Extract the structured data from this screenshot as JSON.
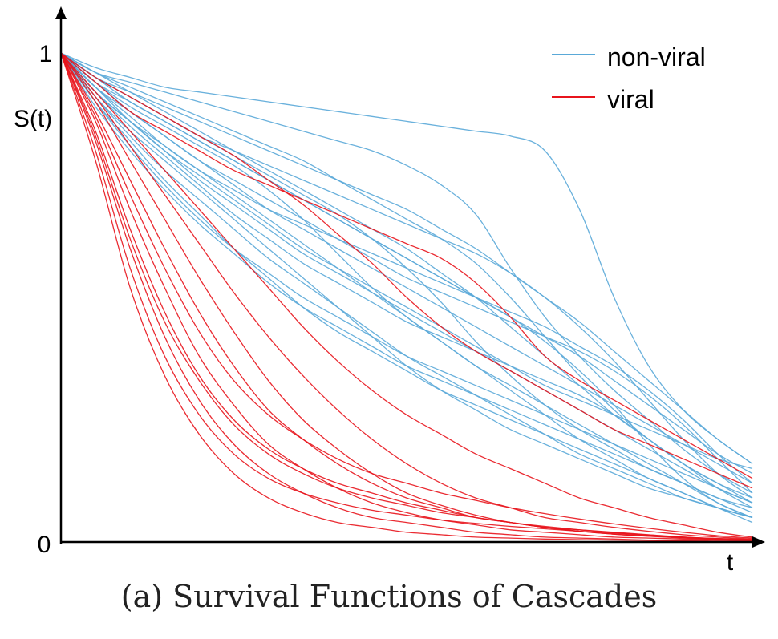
{
  "chart_data": {
    "type": "line",
    "title": "",
    "xlabel": "t",
    "ylabel": "S(t)",
    "ylim": [
      0,
      1
    ],
    "y_tick_labels": [
      "0",
      "1"
    ],
    "grid": false,
    "legend_placement": "top-right",
    "x": [
      0,
      0.05,
      0.1,
      0.15,
      0.2,
      0.25,
      0.3,
      0.35,
      0.4,
      0.45,
      0.5,
      0.55,
      0.6,
      0.65,
      0.7,
      0.75,
      0.8,
      0.85,
      0.9,
      0.95,
      1.0
    ],
    "series": [
      {
        "name": "non-viral",
        "color": "#5aa9d8",
        "curves": [
          [
            1,
            0.97,
            0.95,
            0.93,
            0.92,
            0.91,
            0.9,
            0.89,
            0.88,
            0.87,
            0.86,
            0.85,
            0.84,
            0.83,
            0.8,
            0.68,
            0.5,
            0.36,
            0.27,
            0.21,
            0.16
          ],
          [
            1,
            0.96,
            0.94,
            0.92,
            0.9,
            0.88,
            0.86,
            0.84,
            0.82,
            0.8,
            0.77,
            0.73,
            0.67,
            0.56,
            0.46,
            0.38,
            0.31,
            0.25,
            0.19,
            0.14,
            0.1
          ],
          [
            1,
            0.95,
            0.92,
            0.89,
            0.86,
            0.83,
            0.8,
            0.77,
            0.74,
            0.71,
            0.68,
            0.64,
            0.6,
            0.55,
            0.5,
            0.45,
            0.39,
            0.33,
            0.27,
            0.21,
            0.16
          ],
          [
            1,
            0.94,
            0.9,
            0.86,
            0.82,
            0.78,
            0.74,
            0.7,
            0.66,
            0.62,
            0.58,
            0.54,
            0.5,
            0.46,
            0.42,
            0.38,
            0.33,
            0.28,
            0.23,
            0.18,
            0.14
          ],
          [
            1,
            0.93,
            0.88,
            0.83,
            0.78,
            0.73,
            0.68,
            0.64,
            0.6,
            0.56,
            0.52,
            0.48,
            0.44,
            0.4,
            0.36,
            0.32,
            0.28,
            0.24,
            0.2,
            0.16,
            0.12
          ],
          [
            1,
            0.92,
            0.86,
            0.8,
            0.74,
            0.69,
            0.64,
            0.59,
            0.55,
            0.51,
            0.47,
            0.43,
            0.39,
            0.35,
            0.31,
            0.27,
            0.23,
            0.19,
            0.15,
            0.11,
            0.08
          ],
          [
            1,
            0.95,
            0.91,
            0.87,
            0.83,
            0.79,
            0.75,
            0.71,
            0.67,
            0.62,
            0.56,
            0.49,
            0.41,
            0.34,
            0.28,
            0.23,
            0.19,
            0.15,
            0.12,
            0.09,
            0.07
          ],
          [
            1,
            0.93,
            0.87,
            0.81,
            0.76,
            0.72,
            0.68,
            0.65,
            0.62,
            0.59,
            0.56,
            0.53,
            0.5,
            0.47,
            0.44,
            0.4,
            0.36,
            0.31,
            0.25,
            0.18,
            0.12
          ],
          [
            1,
            0.91,
            0.83,
            0.76,
            0.7,
            0.64,
            0.58,
            0.53,
            0.48,
            0.43,
            0.38,
            0.34,
            0.3,
            0.26,
            0.22,
            0.18,
            0.15,
            0.12,
            0.09,
            0.07,
            0.05
          ],
          [
            1,
            0.94,
            0.89,
            0.85,
            0.81,
            0.77,
            0.72,
            0.66,
            0.59,
            0.52,
            0.46,
            0.41,
            0.36,
            0.32,
            0.28,
            0.24,
            0.2,
            0.16,
            0.12,
            0.08,
            0.05
          ],
          [
            1,
            0.96,
            0.93,
            0.9,
            0.87,
            0.84,
            0.81,
            0.78,
            0.74,
            0.7,
            0.66,
            0.62,
            0.57,
            0.5,
            0.42,
            0.34,
            0.27,
            0.21,
            0.16,
            0.12,
            0.09
          ],
          [
            1,
            0.92,
            0.85,
            0.79,
            0.73,
            0.67,
            0.62,
            0.57,
            0.53,
            0.49,
            0.45,
            0.42,
            0.39,
            0.36,
            0.33,
            0.3,
            0.26,
            0.21,
            0.16,
            0.11,
            0.07
          ],
          [
            1,
            0.9,
            0.82,
            0.74,
            0.67,
            0.6,
            0.54,
            0.48,
            0.43,
            0.39,
            0.35,
            0.31,
            0.28,
            0.25,
            0.22,
            0.19,
            0.16,
            0.13,
            0.1,
            0.07,
            0.04
          ],
          [
            1,
            0.95,
            0.9,
            0.86,
            0.82,
            0.78,
            0.74,
            0.7,
            0.66,
            0.62,
            0.58,
            0.54,
            0.5,
            0.46,
            0.41,
            0.35,
            0.28,
            0.2,
            0.13,
            0.08,
            0.05
          ],
          [
            1,
            0.93,
            0.86,
            0.8,
            0.75,
            0.7,
            0.65,
            0.6,
            0.56,
            0.52,
            0.48,
            0.44,
            0.4,
            0.36,
            0.32,
            0.29,
            0.26,
            0.23,
            0.2,
            0.17,
            0.15
          ],
          [
            1,
            0.91,
            0.84,
            0.78,
            0.72,
            0.66,
            0.6,
            0.54,
            0.48,
            0.42,
            0.36,
            0.31,
            0.27,
            0.23,
            0.2,
            0.17,
            0.14,
            0.11,
            0.09,
            0.07,
            0.05
          ],
          [
            1,
            0.94,
            0.88,
            0.83,
            0.78,
            0.74,
            0.7,
            0.66,
            0.62,
            0.58,
            0.54,
            0.51,
            0.48,
            0.45,
            0.42,
            0.39,
            0.35,
            0.3,
            0.24,
            0.17,
            0.1
          ],
          [
            1,
            0.89,
            0.8,
            0.72,
            0.65,
            0.59,
            0.53,
            0.48,
            0.44,
            0.4,
            0.36,
            0.33,
            0.3,
            0.27,
            0.24,
            0.21,
            0.18,
            0.15,
            0.12,
            0.09,
            0.06
          ],
          [
            1,
            0.96,
            0.92,
            0.88,
            0.84,
            0.8,
            0.76,
            0.72,
            0.68,
            0.64,
            0.6,
            0.55,
            0.5,
            0.44,
            0.38,
            0.32,
            0.26,
            0.21,
            0.16,
            0.12,
            0.08
          ],
          [
            1,
            0.92,
            0.86,
            0.81,
            0.76,
            0.71,
            0.66,
            0.61,
            0.56,
            0.51,
            0.46,
            0.41,
            0.36,
            0.31,
            0.26,
            0.21,
            0.17,
            0.13,
            0.1,
            0.07,
            0.05
          ],
          [
            1,
            0.95,
            0.91,
            0.87,
            0.83,
            0.8,
            0.77,
            0.74,
            0.71,
            0.68,
            0.65,
            0.62,
            0.59,
            0.55,
            0.5,
            0.44,
            0.37,
            0.29,
            0.21,
            0.14,
            0.09
          ],
          [
            1,
            0.9,
            0.81,
            0.73,
            0.66,
            0.6,
            0.55,
            0.5,
            0.46,
            0.42,
            0.38,
            0.35,
            0.32,
            0.29,
            0.26,
            0.23,
            0.2,
            0.17,
            0.14,
            0.11,
            0.08
          ]
        ]
      },
      {
        "name": "viral",
        "color": "#e8141c",
        "curves": [
          [
            1,
            0.78,
            0.52,
            0.34,
            0.22,
            0.14,
            0.09,
            0.06,
            0.04,
            0.03,
            0.02,
            0.015,
            0.01,
            0.008,
            0.006,
            0.005,
            0.004,
            0.003,
            0.002,
            0.001,
            0
          ],
          [
            1,
            0.82,
            0.6,
            0.42,
            0.29,
            0.2,
            0.14,
            0.1,
            0.07,
            0.05,
            0.04,
            0.03,
            0.02,
            0.015,
            0.01,
            0.008,
            0.006,
            0.004,
            0.003,
            0.002,
            0.001
          ],
          [
            1,
            0.86,
            0.68,
            0.52,
            0.38,
            0.28,
            0.2,
            0.15,
            0.11,
            0.08,
            0.06,
            0.045,
            0.035,
            0.025,
            0.02,
            0.015,
            0.01,
            0.008,
            0.006,
            0.004,
            0.003
          ],
          [
            1,
            0.88,
            0.74,
            0.6,
            0.47,
            0.36,
            0.27,
            0.21,
            0.16,
            0.12,
            0.09,
            0.07,
            0.05,
            0.04,
            0.03,
            0.022,
            0.016,
            0.012,
            0.009,
            0.006,
            0.004
          ],
          [
            1,
            0.84,
            0.64,
            0.47,
            0.34,
            0.25,
            0.19,
            0.15,
            0.12,
            0.1,
            0.08,
            0.065,
            0.05,
            0.04,
            0.03,
            0.025,
            0.02,
            0.015,
            0.01,
            0.007,
            0.005
          ],
          [
            1,
            0.9,
            0.78,
            0.66,
            0.54,
            0.43,
            0.33,
            0.25,
            0.19,
            0.14,
            0.1,
            0.075,
            0.055,
            0.04,
            0.03,
            0.022,
            0.016,
            0.012,
            0.008,
            0.005,
            0.003
          ],
          [
            1,
            0.8,
            0.56,
            0.38,
            0.26,
            0.18,
            0.13,
            0.1,
            0.08,
            0.065,
            0.055,
            0.045,
            0.038,
            0.032,
            0.027,
            0.022,
            0.018,
            0.014,
            0.01,
            0.007,
            0.005
          ],
          [
            1,
            0.91,
            0.81,
            0.71,
            0.61,
            0.51,
            0.42,
            0.34,
            0.27,
            0.21,
            0.16,
            0.12,
            0.09,
            0.07,
            0.05,
            0.04,
            0.03,
            0.022,
            0.015,
            0.01,
            0.006
          ],
          [
            1,
            0.87,
            0.71,
            0.56,
            0.43,
            0.33,
            0.26,
            0.21,
            0.17,
            0.14,
            0.12,
            0.1,
            0.085,
            0.07,
            0.058,
            0.047,
            0.037,
            0.028,
            0.02,
            0.013,
            0.008
          ],
          [
            1,
            0.92,
            0.84,
            0.76,
            0.68,
            0.6,
            0.52,
            0.44,
            0.37,
            0.31,
            0.26,
            0.22,
            0.18,
            0.15,
            0.12,
            0.09,
            0.07,
            0.05,
            0.035,
            0.02,
            0.01
          ],
          [
            1,
            0.94,
            0.88,
            0.84,
            0.8,
            0.76,
            0.73,
            0.7,
            0.67,
            0.64,
            0.61,
            0.58,
            0.53,
            0.46,
            0.38,
            0.33,
            0.29,
            0.25,
            0.21,
            0.17,
            0.13
          ],
          [
            1,
            0.95,
            0.91,
            0.87,
            0.83,
            0.79,
            0.74,
            0.69,
            0.63,
            0.57,
            0.5,
            0.44,
            0.39,
            0.35,
            0.31,
            0.27,
            0.23,
            0.2,
            0.17,
            0.14,
            0.11
          ],
          [
            1,
            0.83,
            0.62,
            0.45,
            0.33,
            0.24,
            0.18,
            0.14,
            0.11,
            0.09,
            0.075,
            0.06,
            0.05,
            0.04,
            0.032,
            0.025,
            0.019,
            0.014,
            0.01,
            0.006,
            0.003
          ]
        ]
      }
    ]
  }
}
